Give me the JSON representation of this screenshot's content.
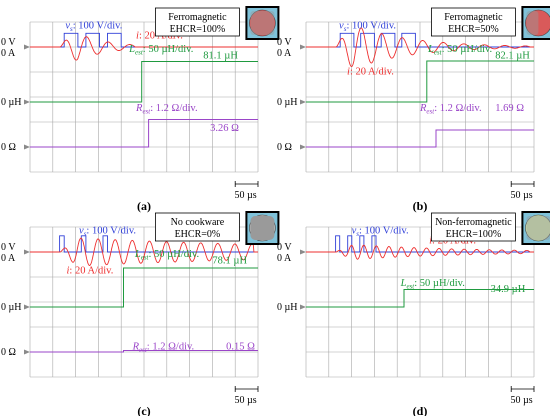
{
  "colors": {
    "voltage": "#2f3fd8",
    "current": "#ee2f2f",
    "inductance": "#1f9a3f",
    "resistance": "#9a45c8",
    "grid": "#a8a8a8",
    "marker": "#8a8a8a"
  },
  "chart_data": [
    {
      "type": "line",
      "panel_label": "(a)",
      "annotation": {
        "line1": "Ferromagnetic",
        "line2": "EHCR=100%"
      },
      "icon": {
        "name": "ferromagnetic-cookware-icon",
        "disc_fill": "#d95a5a",
        "shade": true,
        "shade_fraction": 1.0
      },
      "scale_bar": "50 µs",
      "channels": [
        {
          "key": "v",
          "sym": "v",
          "sub": "s",
          "scale": "100 V/div.",
          "zero_label": "0 V",
          "zero_div": 1.0
        },
        {
          "key": "i",
          "sym": "i",
          "sub": "",
          "scale": "20 A/div.",
          "zero_label": "0 A",
          "zero_div": 1.0
        },
        {
          "key": "L",
          "sym": "L",
          "sub": "est",
          "scale": "50 µH/div.",
          "zero_label": "0 µH",
          "zero_div": 3.2,
          "value_label": "81.1 µH"
        },
        {
          "key": "R",
          "sym": "R",
          "sub": "est",
          "scale": "1.2 Ω/div.",
          "zero_label": "0 Ω",
          "zero_div": 5.0,
          "value_label": "3.26 Ω"
        }
      ],
      "waveforms": {
        "pulse_start_div": 1.5,
        "pulse_width_div": 0.6,
        "pulse_gap_div": 0.35,
        "pulses": 3,
        "v_amp_div": 0.55,
        "i_start_div": 1.3,
        "i_amp_div": 1.0,
        "i_period_div": 0.95,
        "i_decay": 0.75,
        "i_flat_after_div": 4.6,
        "L_step_div": 4.9,
        "L_value_div": 1.62,
        "R_step_div": 5.2,
        "R_value_div": 1.1
      }
    },
    {
      "type": "line",
      "panel_label": "(b)",
      "annotation": {
        "line1": "Ferromagnetic",
        "line2": "EHCR=50%"
      },
      "icon": {
        "name": "ferromagnetic-cookware-icon",
        "disc_fill": "#d95a5a",
        "shade": true,
        "shade_fraction": 0.5
      },
      "scale_bar": "50 µs",
      "channels": [
        {
          "key": "v",
          "sym": "v",
          "sub": "s",
          "scale": "100 V/div.",
          "zero_label": "0 V",
          "zero_div": 1.0
        },
        {
          "key": "i",
          "sym": "i",
          "sub": "",
          "scale": "20 A/div.",
          "zero_label": "0 A",
          "zero_div": 1.0
        },
        {
          "key": "L",
          "sym": "L",
          "sub": "est",
          "scale": "50 µH/div.",
          "zero_label": "0 µH",
          "zero_div": 3.2,
          "value_label": "82.1 µH"
        },
        {
          "key": "R",
          "sym": "R",
          "sub": "est",
          "scale": "1.2 Ω/div.",
          "zero_label": "0 Ω",
          "zero_div": 5.0,
          "value_label": "1.69 Ω"
        }
      ],
      "waveforms": {
        "pulse_start_div": 1.5,
        "pulse_width_div": 0.6,
        "pulse_gap_div": 0.3,
        "pulses": 4,
        "v_amp_div": 0.55,
        "i_start_div": 1.3,
        "i_amp_div": 1.2,
        "i_period_div": 0.9,
        "i_decay": 0.4,
        "i_flat_after_div": 9.8,
        "L_step_div": 5.3,
        "L_value_div": 1.64,
        "R_step_div": 5.7,
        "R_value_div": 0.68
      }
    },
    {
      "type": "line",
      "panel_label": "(c)",
      "annotation": {
        "line1": "No cookware",
        "line2": "EHCR=0%"
      },
      "icon": {
        "name": "no-cookware-icon",
        "disc_fill": "#bdbdbd",
        "shade": false,
        "shade_fraction": 0
      },
      "scale_bar": "50 µs",
      "channels": [
        {
          "key": "v",
          "sym": "v",
          "sub": "s",
          "scale": "100 V/div.",
          "zero_label": "0 V",
          "zero_div": 1.0
        },
        {
          "key": "i",
          "sym": "i",
          "sub": "",
          "scale": "20 A/div.",
          "zero_label": "0 A",
          "zero_div": 1.0
        },
        {
          "key": "L",
          "sym": "L",
          "sub": "est",
          "scale": "50 µH/div.",
          "zero_label": "0 µH",
          "zero_div": 3.2,
          "value_label": "78.1 µH"
        },
        {
          "key": "R",
          "sym": "R",
          "sub": "est",
          "scale": "1.2 Ω/div.",
          "zero_label": "0 Ω",
          "zero_div": 5.0,
          "value_label": "0.15 Ω"
        }
      ],
      "waveforms": {
        "pulse_start_div": 1.3,
        "pulse_width_div": 0.2,
        "pulse_gap_div": 0.75,
        "pulses": 3,
        "v_amp_div": 0.65,
        "i_start_div": 1.3,
        "i_amp_div": 0.6,
        "i_period_div": 0.75,
        "i_decay": 0.08,
        "i_flat_after_div": 9.8,
        "L_step_div": 4.1,
        "L_value_div": 1.56,
        "R_step_div": 4.1,
        "R_value_div": 0.06
      }
    },
    {
      "type": "line",
      "panel_label": "(d)",
      "annotation": {
        "line1": "Non-ferromagnetic",
        "line2": "EHCR=100%"
      },
      "icon": {
        "name": "non-ferromagnetic-cookware-icon",
        "disc_fill": "#cbe0a8",
        "shade": true,
        "shade_fraction": 1.0
      },
      "scale_bar": "50 µs",
      "channels": [
        {
          "key": "v",
          "sym": "v",
          "sub": "s",
          "scale": "100 V/div.",
          "zero_label": "0 V",
          "zero_div": 1.0
        },
        {
          "key": "i",
          "sym": "i",
          "sub": "",
          "scale": "20 A/div.",
          "zero_label": "0 A",
          "zero_div": 1.0
        },
        {
          "key": "L",
          "sym": "L",
          "sub": "est",
          "scale": "50 µH/div.",
          "zero_label": "0 µH",
          "zero_div": 3.2,
          "value_label": "34.9 µH"
        }
      ],
      "waveforms": {
        "pulse_start_div": 1.3,
        "pulse_width_div": 0.18,
        "pulse_gap_div": 0.35,
        "pulses": 4,
        "v_amp_div": 0.65,
        "i_start_div": 1.3,
        "i_amp_div": 0.35,
        "i_period_div": 0.55,
        "i_decay": 0.2,
        "i_flat_after_div": 9.8,
        "L_step_div": 4.3,
        "L_value_div": 0.7
      }
    }
  ]
}
